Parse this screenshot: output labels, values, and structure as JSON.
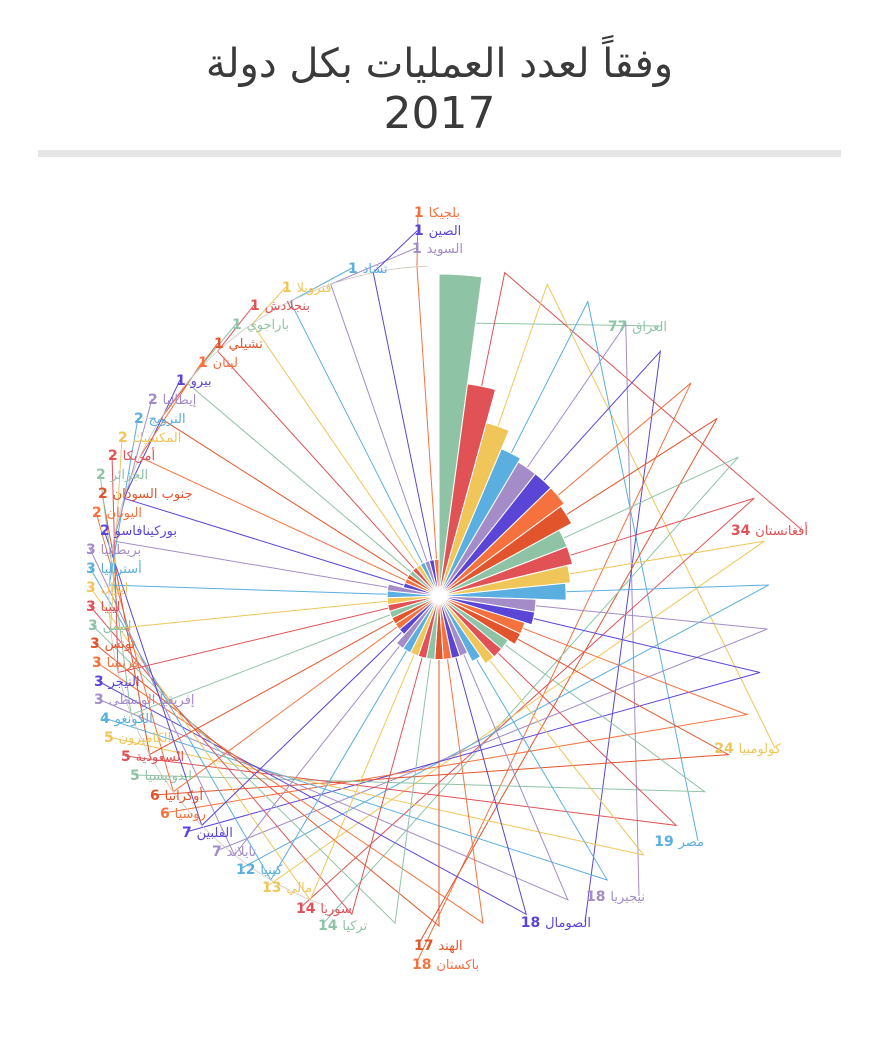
{
  "header": {
    "title_line1": "وفقاً لعدد العمليات بكل دولة",
    "title_line2": "2017"
  },
  "chart_data": {
    "type": "pie",
    "variant": "polar-area",
    "title": "وفقاً لعدد العمليات بكل دولة 2017",
    "max_value": 77,
    "slices": [
      {
        "label": "العراق",
        "value": 77,
        "color": "#8fc3a6"
      },
      {
        "label": "أفغانستان",
        "value": 34,
        "color": "#e05256"
      },
      {
        "label": "كولومبيا",
        "value": 24,
        "color": "#f0c65a"
      },
      {
        "label": "مصر",
        "value": 19,
        "color": "#5aaee0"
      },
      {
        "label": "نيجيريا",
        "value": 18,
        "color": "#a38cc8"
      },
      {
        "label": "الصومال",
        "value": 18,
        "color": "#5b45d6"
      },
      {
        "label": "باكستان",
        "value": 18,
        "color": "#f5723e"
      },
      {
        "label": "الهند",
        "value": 17,
        "color": "#e2542c"
      },
      {
        "label": "تركيا",
        "value": 14,
        "color": "#8fc3a6"
      },
      {
        "label": "سوريا",
        "value": 14,
        "color": "#e05256"
      },
      {
        "label": "مالي",
        "value": 13,
        "color": "#f0c65a"
      },
      {
        "label": "كينيا",
        "value": 12,
        "color": "#5aaee0"
      },
      {
        "label": "تايلاند",
        "value": 7,
        "color": "#a38cc8"
      },
      {
        "label": "الفلبين",
        "value": 7,
        "color": "#5b45d6"
      },
      {
        "label": "روسيا",
        "value": 6,
        "color": "#f5723e"
      },
      {
        "label": "أوكرانيا",
        "value": 6,
        "color": "#e2542c"
      },
      {
        "label": "اندونيسيا",
        "value": 5,
        "color": "#8fc3a6"
      },
      {
        "label": "السعودية",
        "value": 5,
        "color": "#e05256"
      },
      {
        "label": "الكاميرون",
        "value": 5,
        "color": "#f0c65a"
      },
      {
        "label": "الكونغو",
        "value": 4,
        "color": "#5aaee0"
      },
      {
        "label": "إفريقيا الوسطى",
        "value": 3,
        "color": "#a38cc8"
      },
      {
        "label": "النيجر",
        "value": 3,
        "color": "#5b45d6"
      },
      {
        "label": "فرنسا",
        "value": 3,
        "color": "#f5723e"
      },
      {
        "label": "تونس",
        "value": 3,
        "color": "#e2542c"
      },
      {
        "label": "اليمن",
        "value": 3,
        "color": "#8fc3a6"
      },
      {
        "label": "ليبيا",
        "value": 3,
        "color": "#e05256"
      },
      {
        "label": "إيران",
        "value": 3,
        "color": "#f0c65a"
      },
      {
        "label": "أستراليا",
        "value": 3,
        "color": "#5aaee0"
      },
      {
        "label": "بريطانيا",
        "value": 3,
        "color": "#a38cc8"
      },
      {
        "label": "بوركينافاسو",
        "value": 2,
        "color": "#5b45d6"
      },
      {
        "label": "اليونان",
        "value": 2,
        "color": "#f5723e"
      },
      {
        "label": "جنوب السودان",
        "value": 2,
        "color": "#e2542c"
      },
      {
        "label": "الجزائر",
        "value": 2,
        "color": "#8fc3a6"
      },
      {
        "label": "أمريكا",
        "value": 2,
        "color": "#e05256"
      },
      {
        "label": "المكسيك",
        "value": 2,
        "color": "#f0c65a"
      },
      {
        "label": "النرويج",
        "value": 2,
        "color": "#5aaee0"
      },
      {
        "label": "إيطاليا",
        "value": 2,
        "color": "#a38cc8"
      },
      {
        "label": "بيرو",
        "value": 1,
        "color": "#5b45d6"
      },
      {
        "label": "لبنان",
        "value": 1,
        "color": "#f5723e"
      },
      {
        "label": "تشيلي",
        "value": 1,
        "color": "#e2542c"
      },
      {
        "label": "باراجوي",
        "value": 1,
        "color": "#8fc3a6"
      },
      {
        "label": "بنجلادش",
        "value": 1,
        "color": "#e05256"
      },
      {
        "label": "فنزويلا",
        "value": 1,
        "color": "#f0c65a"
      },
      {
        "label": "تشاد",
        "value": 1,
        "color": "#5aaee0"
      },
      {
        "label": "السويد",
        "value": 1,
        "color": "#a38cc8"
      },
      {
        "label": "الصين",
        "value": 1,
        "color": "#5b45d6"
      },
      {
        "label": "بلجيكا",
        "value": 1,
        "color": "#f5723e"
      }
    ]
  }
}
